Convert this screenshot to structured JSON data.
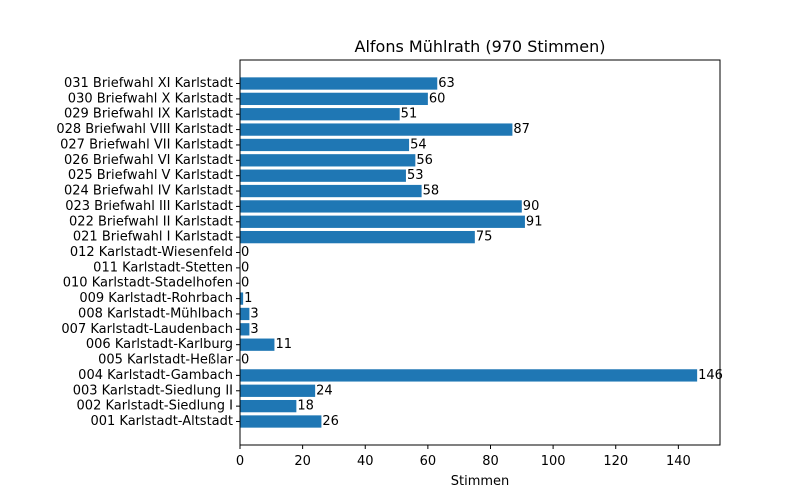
{
  "chart_data": {
    "type": "bar",
    "orientation": "horizontal",
    "title": "Alfons Mühlrath (970 Stimmen)",
    "xlabel": "Stimmen",
    "ylabel": "",
    "xlim": [
      0,
      153.3
    ],
    "xticks": [
      0,
      20,
      40,
      60,
      80,
      100,
      120,
      140
    ],
    "grid": false,
    "bar_color": "#1f77b4",
    "categories": [
      "031 Briefwahl XI Karlstadt",
      "030 Briefwahl X Karlstadt",
      "029 Briefwahl IX Karlstadt",
      "028 Briefwahl VIII Karlstadt",
      "027 Briefwahl VII Karlstadt",
      "026 Briefwahl VI Karlstadt",
      "025 Briefwahl V Karlstadt",
      "024 Briefwahl IV Karlstadt",
      "023 Briefwahl III Karlstadt",
      "022 Briefwahl II Karlstadt",
      "021 Briefwahl I Karlstadt",
      "012 Karlstadt-Wiesenfeld",
      "011 Karlstadt-Stetten",
      "010 Karlstadt-Stadelhofen",
      "009 Karlstadt-Rohrbach",
      "008 Karlstadt-Mühlbach",
      "007 Karlstadt-Laudenbach",
      "006 Karlstadt-Karlburg",
      "005 Karlstadt-Heßlar",
      "004 Karlstadt-Gambach",
      "003 Karlstadt-Siedlung II",
      "002 Karlstadt-Siedlung I",
      "001 Karlstadt-Altstadt"
    ],
    "values": [
      63,
      60,
      51,
      87,
      54,
      56,
      53,
      58,
      90,
      91,
      75,
      0,
      0,
      0,
      1,
      3,
      3,
      11,
      0,
      146,
      24,
      18,
      26
    ]
  }
}
